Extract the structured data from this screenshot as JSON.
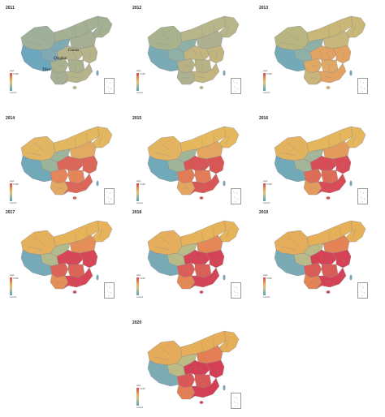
{
  "colors": {
    "high": "#d94a55",
    "mid_high": "#e07a4f",
    "mid": "#e8b25c",
    "mid_low": "#cdbf84",
    "low": "#8fb3a6",
    "lowest": "#5a9fb8",
    "border": "#8a8a8a"
  },
  "legend": {
    "top_label": "High",
    "top_value": "0.948",
    "bottom_label": "Low",
    "bottom_value": "0.1"
  },
  "labels": {
    "gansu": "Gansu",
    "qinghai": "Qinghai",
    "tibet": "Tibet"
  },
  "panels": [
    {
      "year": "2011",
      "palette": [
        "#9fb09a",
        "#a3b092",
        "#7fa9b3",
        "#6ca7bd",
        "#a9b08e",
        "#b4b38a",
        "#a6ae94"
      ]
    },
    {
      "year": "2012",
      "palette": [
        "#a8b38e",
        "#b6b68a",
        "#8fb0a6",
        "#7aabb5",
        "#b9b186",
        "#c2b47e",
        "#aeb18f"
      ]
    },
    {
      "year": "2013",
      "palette": [
        "#b9b580",
        "#c9b777",
        "#8fb0a6",
        "#74aab8",
        "#dfa864",
        "#e2a261",
        "#c8b57b"
      ]
    },
    {
      "year": "2014",
      "palette": [
        "#e1b561",
        "#e3b75f",
        "#9db49c",
        "#72a9b9",
        "#e6855a",
        "#dc6658",
        "#e2a963"
      ]
    },
    {
      "year": "2015",
      "palette": [
        "#e3b45f",
        "#e6b85d",
        "#a0b69a",
        "#72a9b9",
        "#e27c57",
        "#d95656",
        "#e3a55f"
      ]
    },
    {
      "year": "2016",
      "palette": [
        "#e3b25e",
        "#e6b65c",
        "#a4b697",
        "#72a9b9",
        "#de6c56",
        "#d74c56",
        "#e39c5c"
      ]
    },
    {
      "year": "2017",
      "palette": [
        "#e4b05d",
        "#e6b35b",
        "#b2b98d",
        "#76aab8",
        "#dc6456",
        "#d64656",
        "#e48f58"
      ]
    },
    {
      "year": "2018",
      "palette": [
        "#e4ae5c",
        "#e6b25a",
        "#b8ba88",
        "#78aab6",
        "#db5f56",
        "#d54456",
        "#e48856"
      ]
    },
    {
      "year": "2019",
      "palette": [
        "#e4ad5c",
        "#e6b059",
        "#b9ba87",
        "#7aabb5",
        "#da5c56",
        "#d54256",
        "#e48355"
      ]
    },
    {
      "year": "2020",
      "palette": [
        "#e4ab5b",
        "#e6ae58",
        "#bbbb86",
        "#7cabb4",
        "#d95856",
        "#d43f56",
        "#e47e54"
      ]
    }
  ]
}
